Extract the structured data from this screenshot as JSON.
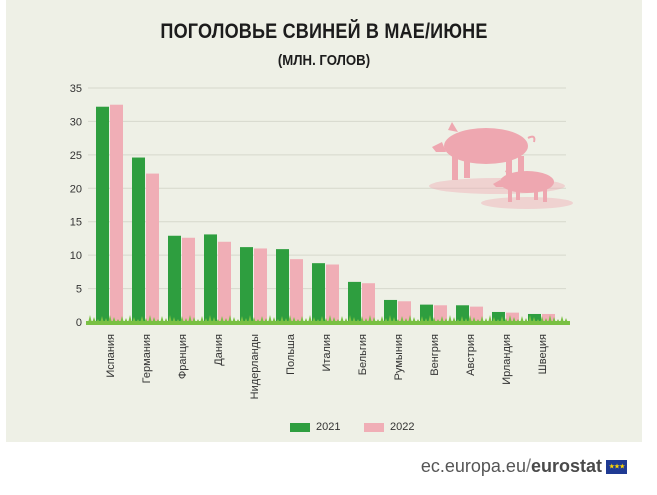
{
  "title": "ПОГОЛОВЬЕ СВИНЕЙ В МАЕ/ИЮНЕ",
  "subtitle": "(МЛН. ГОЛОВ)",
  "legend": {
    "label_2021": "2021",
    "label_2022": "2022"
  },
  "colors": {
    "series_2021": "#2e9e3f",
    "series_2022": "#f0aeb6",
    "grass": "#79c043",
    "pig": "#f0aeb6",
    "background": "#eef0e6"
  },
  "illustration": {
    "icon": "pigs-illustration-icon"
  },
  "source": {
    "site": "ec.europa.eu",
    "separator": "/",
    "brand": "eurostat",
    "flag_icon": "eu-flag-icon"
  },
  "chart_data": {
    "type": "bar",
    "categories": [
      "Испания",
      "Германия",
      "Франция",
      "Дания",
      "Нидерланды",
      "Польша",
      "Италия",
      "Бельгия",
      "Румыния",
      "Венгрия",
      "Австрия",
      "Ирландия",
      "Швеция"
    ],
    "series": [
      {
        "name": "2021",
        "values": [
          32.2,
          24.6,
          12.9,
          13.1,
          11.2,
          10.9,
          8.8,
          6.0,
          3.3,
          2.6,
          2.5,
          1.5,
          1.2
        ]
      },
      {
        "name": "2022",
        "values": [
          32.5,
          22.2,
          12.6,
          12.0,
          11.0,
          9.4,
          8.6,
          5.8,
          3.1,
          2.5,
          2.3,
          1.4,
          1.2
        ]
      }
    ],
    "yticks": [
      0,
      5,
      10,
      15,
      20,
      25,
      30,
      35
    ],
    "ylim": [
      0,
      35
    ],
    "grid": true,
    "legend_position": "bottom"
  }
}
